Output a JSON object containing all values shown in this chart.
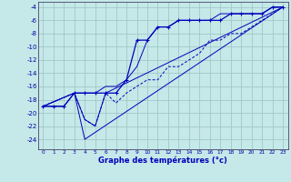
{
  "title": "Graphe des températures (°c)",
  "bg_color": "#c5e8e8",
  "grid_color": "#a0c8c8",
  "line_color": "#0000bb",
  "xlim": [
    -0.5,
    23.5
  ],
  "ylim": [
    -25.5,
    -3.2
  ],
  "yticks": [
    -4,
    -6,
    -8,
    -10,
    -12,
    -14,
    -16,
    -18,
    -20,
    -22,
    -24
  ],
  "xticks": [
    0,
    1,
    2,
    3,
    4,
    5,
    6,
    7,
    8,
    9,
    10,
    11,
    12,
    13,
    14,
    15,
    16,
    17,
    18,
    19,
    20,
    21,
    22,
    23
  ],
  "line1_x": [
    0,
    1,
    2,
    3,
    4,
    5,
    6,
    7,
    8,
    9,
    10,
    11,
    12,
    13,
    14,
    15,
    16,
    17,
    18,
    19,
    20,
    21,
    22,
    23
  ],
  "line1_y": [
    -19,
    -19,
    -19,
    -17,
    -17,
    -17,
    -17,
    -17,
    -15,
    -9,
    -9,
    -7,
    -7,
    -6,
    -6,
    -6,
    -6,
    -6,
    -5,
    -5,
    -5,
    -5,
    -4,
    -4
  ],
  "line2_x": [
    0,
    1,
    2,
    3,
    4,
    5,
    6,
    7,
    8,
    9,
    10,
    11,
    12,
    13,
    14,
    15,
    16,
    17,
    18,
    19,
    20,
    21,
    22,
    23
  ],
  "line2_y": [
    -19,
    -19,
    -19,
    -17,
    -17,
    -17,
    -16,
    -16,
    -15,
    -13,
    -9,
    -7,
    -7,
    -6,
    -6,
    -6,
    -6,
    -5,
    -5,
    -5,
    -5,
    -5,
    -4,
    -4
  ],
  "line3_x": [
    0,
    3,
    4,
    5,
    6,
    7,
    8,
    9,
    10,
    11,
    12,
    13,
    14,
    15,
    16,
    17,
    18,
    19,
    20,
    21,
    22,
    23
  ],
  "line3_y": [
    -19,
    -17,
    -21,
    -22,
    -17,
    -18.5,
    -17,
    -16,
    -15,
    -15,
    -13,
    -13,
    -12,
    -11,
    -9,
    -9,
    -8,
    -8,
    -7,
    -6,
    -5,
    -4
  ],
  "line4_x": [
    0,
    3,
    4,
    5,
    6,
    23
  ],
  "line4_y": [
    -19,
    -17,
    -21,
    -22,
    -17,
    -4
  ],
  "line5_x": [
    0,
    3,
    4,
    23
  ],
  "line5_y": [
    -19,
    -17,
    -24,
    -4
  ]
}
